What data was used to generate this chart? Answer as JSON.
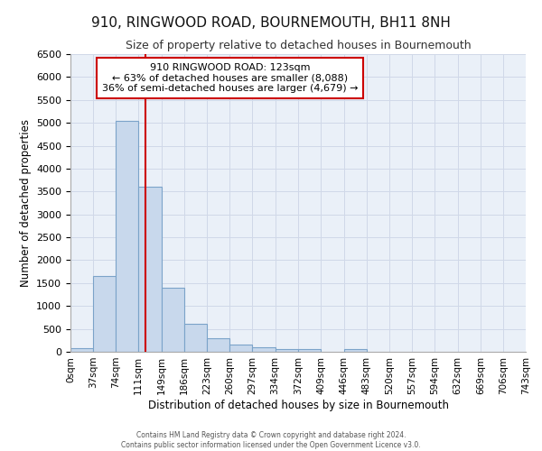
{
  "title": "910, RINGWOOD ROAD, BOURNEMOUTH, BH11 8NH",
  "subtitle": "Size of property relative to detached houses in Bournemouth",
  "xlabel": "Distribution of detached houses by size in Bournemouth",
  "ylabel": "Number of detached properties",
  "bar_color": "#c8d8ec",
  "bar_edge_color": "#7ba3c9",
  "bin_labels": [
    "0sqm",
    "37sqm",
    "74sqm",
    "111sqm",
    "149sqm",
    "186sqm",
    "223sqm",
    "260sqm",
    "297sqm",
    "334sqm",
    "372sqm",
    "409sqm",
    "446sqm",
    "483sqm",
    "520sqm",
    "557sqm",
    "594sqm",
    "632sqm",
    "669sqm",
    "706sqm",
    "743sqm"
  ],
  "bin_edges": [
    0,
    37,
    74,
    111,
    149,
    186,
    223,
    260,
    297,
    334,
    372,
    409,
    446,
    483,
    520,
    557,
    594,
    632,
    669,
    706,
    743
  ],
  "bar_heights": [
    75,
    1650,
    5050,
    3600,
    1400,
    620,
    300,
    150,
    90,
    60,
    60,
    0,
    60,
    0,
    0,
    0,
    0,
    0,
    0,
    0
  ],
  "ylim": [
    0,
    6500
  ],
  "yticks": [
    0,
    500,
    1000,
    1500,
    2000,
    2500,
    3000,
    3500,
    4000,
    4500,
    5000,
    5500,
    6000,
    6500
  ],
  "red_line_x": 123,
  "annotation_title": "910 RINGWOOD ROAD: 123sqm",
  "annotation_line1": "← 63% of detached houses are smaller (8,088)",
  "annotation_line2": "36% of semi-detached houses are larger (4,679) →",
  "annotation_box_color": "#ffffff",
  "annotation_box_edge": "#cc0000",
  "red_line_color": "#cc0000",
  "grid_color": "#d0d8e8",
  "background_color": "#eaf0f8",
  "footer_line1": "Contains HM Land Registry data © Crown copyright and database right 2024.",
  "footer_line2": "Contains public sector information licensed under the Open Government Licence v3.0."
}
